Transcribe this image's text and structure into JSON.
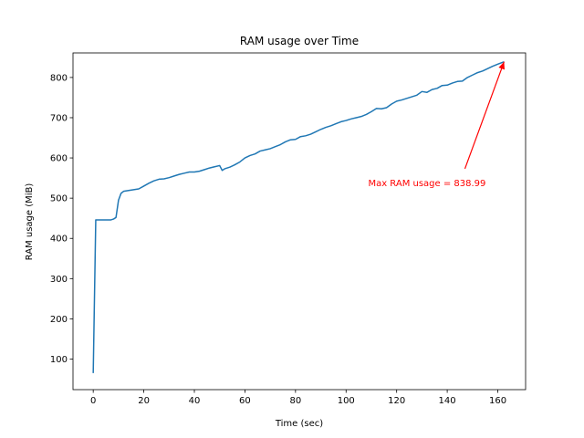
{
  "chart_data": {
    "type": "line",
    "title": "RAM usage over Time",
    "xlabel": "Time (sec)",
    "ylabel": "RAM usage (MiB)",
    "xlim": [
      -8,
      171
    ],
    "ylim": [
      24,
      861
    ],
    "xticks": [
      0,
      20,
      40,
      60,
      80,
      100,
      120,
      140,
      160
    ],
    "yticks": [
      100,
      200,
      300,
      400,
      500,
      600,
      700,
      800
    ],
    "grid": false,
    "legend": "none",
    "line_color": "#1f77b4",
    "series": [
      {
        "x": [
          0,
          1,
          2,
          4,
          6,
          7,
          8,
          9,
          10,
          11,
          12,
          14,
          16,
          18,
          20,
          22,
          24,
          26,
          28,
          30,
          32,
          34,
          36,
          38,
          40,
          42,
          44,
          46,
          48,
          50,
          51,
          52,
          54,
          56,
          58,
          60,
          62,
          64,
          66,
          68,
          70,
          72,
          74,
          76,
          78,
          80,
          82,
          84,
          86,
          88,
          90,
          92,
          94,
          96,
          98,
          100,
          102,
          104,
          106,
          108,
          110,
          112,
          114,
          116,
          118,
          120,
          122,
          124,
          126,
          128,
          130,
          132,
          134,
          136,
          138,
          140,
          142,
          144,
          146,
          148,
          150,
          152,
          154,
          156,
          158,
          160,
          162.5
        ],
        "y": [
          65,
          446,
          446,
          446,
          446,
          446,
          448,
          452,
          495,
          512,
          517,
          519,
          521,
          523,
          530,
          537,
          543,
          547,
          548,
          551,
          555,
          559,
          562,
          565,
          565,
          567,
          571,
          575,
          578,
          581,
          569,
          573,
          577,
          583,
          590,
          600,
          606,
          610,
          617,
          620,
          623,
          628,
          633,
          640,
          645,
          646,
          653,
          655,
          659,
          665,
          671,
          676,
          680,
          685,
          690,
          693,
          697,
          700,
          703,
          708,
          715,
          723,
          722,
          725,
          734,
          741,
          744,
          748,
          752,
          756,
          765,
          763,
          770,
          773,
          780,
          781,
          786,
          790,
          791,
          800,
          806,
          812,
          816,
          822,
          828,
          833,
          838.99
        ]
      }
    ],
    "annotation": {
      "text": "Max RAM usage = 838.99",
      "color": "#ff0000",
      "text_x": 132,
      "text_y": 530,
      "arrow_from_x": 147,
      "arrow_from_y": 573,
      "arrow_to_x": 162.5,
      "arrow_to_y": 838.99
    }
  }
}
